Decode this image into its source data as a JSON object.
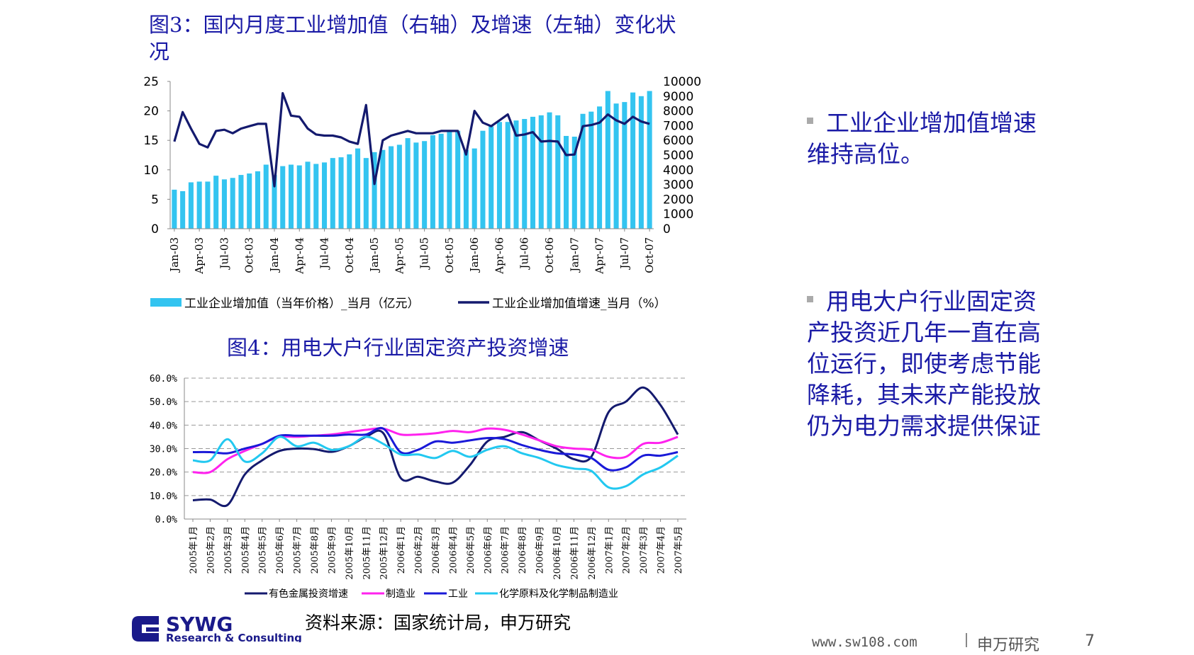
{
  "colors": {
    "title": "#1a1aa6",
    "bar": "#33c4f0",
    "line_dark": "#141a6e",
    "magenta": "#ff22ee",
    "blue": "#1a1ad8",
    "cyan": "#22c8f0"
  },
  "chart_data": [
    {
      "type": "bar+line",
      "title": "图3：国内月度工业增加值（右轴）及增速（左轴）变化状况",
      "x": [
        "Jan-03",
        "Feb-03",
        "Mar-03",
        "Apr-03",
        "May-03",
        "Jun-03",
        "Jul-03",
        "Aug-03",
        "Sep-03",
        "Oct-03",
        "Nov-03",
        "Dec-03",
        "Jan-04",
        "Feb-04",
        "Mar-04",
        "Apr-04",
        "May-04",
        "Jun-04",
        "Jul-04",
        "Aug-04",
        "Sep-04",
        "Oct-04",
        "Nov-04",
        "Dec-04",
        "Jan-05",
        "Feb-05",
        "Mar-05",
        "Apr-05",
        "May-05",
        "Jun-05",
        "Jul-05",
        "Aug-05",
        "Sep-05",
        "Oct-05",
        "Nov-05",
        "Dec-05",
        "Jan-06",
        "Feb-06",
        "Mar-06",
        "Apr-06",
        "May-06",
        "Jun-06",
        "Jul-06",
        "Aug-06",
        "Sep-06",
        "Oct-06",
        "Nov-06",
        "Dec-06",
        "Jan-07",
        "Feb-07",
        "Mar-07",
        "Apr-07",
        "May-07",
        "Jun-07",
        "Jul-07",
        "Aug-07",
        "Sep-07",
        "Oct-07"
      ],
      "x_tick_labels": [
        "Jan-03",
        "Apr-03",
        "Jul-03",
        "Oct-03",
        "Jan-04",
        "Apr-04",
        "Jul-04",
        "Oct-04",
        "Jan-05",
        "Apr-05",
        "Jul-05",
        "Oct-05",
        "Jan-06",
        "Apr-06",
        "Jul-06",
        "Oct-06",
        "Jan-07",
        "Apr-07",
        "Jul-07",
        "Oct-07"
      ],
      "y_left": {
        "ticks": [
          "0",
          "5",
          "10",
          "15",
          "20",
          "25"
        ],
        "lim": [
          0,
          25
        ]
      },
      "y_right": {
        "ticks": [
          "0",
          "1000",
          "2000",
          "3000",
          "4000",
          "5000",
          "6000",
          "7000",
          "8000",
          "9000",
          "10000"
        ],
        "lim": [
          0,
          10000
        ]
      },
      "series": [
        {
          "name": "工业企业增加值（当年价格）_当月（亿元）",
          "type": "bar",
          "axis": "right",
          "values": [
            2650,
            2550,
            3150,
            3200,
            3200,
            3600,
            3350,
            3450,
            3650,
            3750,
            3900,
            4350,
            3650,
            4250,
            4350,
            4300,
            4550,
            4400,
            4500,
            4800,
            4850,
            5050,
            5450,
            4800,
            5200,
            5350,
            5600,
            5700,
            6150,
            5850,
            5950,
            6350,
            6450,
            6650,
            6650,
            5350,
            5450,
            6650,
            6950,
            7250,
            7250,
            7350,
            7450,
            7600,
            7700,
            7900,
            7700,
            6300,
            6250,
            7800,
            7950,
            8300,
            9350,
            8500,
            8600,
            9250,
            9000,
            9350
          ]
        },
        {
          "name": "工业企业增加值增速_当月（%）",
          "type": "line",
          "axis": "left",
          "values": [
            14.8,
            19.8,
            17.0,
            14.4,
            13.8,
            16.6,
            16.8,
            16.2,
            17.0,
            17.4,
            17.8,
            17.8,
            7.2,
            23.0,
            19.2,
            19.0,
            17.0,
            16.0,
            15.8,
            15.8,
            15.5,
            14.8,
            14.4,
            21.0,
            7.6,
            15.0,
            15.8,
            16.2,
            16.6,
            16.2,
            16.2,
            16.2,
            16.6,
            16.6,
            16.6,
            12.6,
            20.0,
            18.0,
            17.4,
            18.4,
            19.4,
            15.8,
            16.0,
            16.4,
            14.8,
            14.9,
            14.8,
            12.5,
            12.6,
            17.4,
            17.6,
            18.0,
            19.4,
            18.4,
            17.8,
            19.0,
            18.2,
            17.8
          ]
        }
      ]
    },
    {
      "type": "line",
      "title": "图4：用电大户行业固定资产投资增速",
      "categories": [
        "2005年1月",
        "2005年2月",
        "2005年3月",
        "2005年4月",
        "2005年5月",
        "2005年6月",
        "2005年7月",
        "2005年8月",
        "2005年9月",
        "2005年10月",
        "2005年11月",
        "2005年12月",
        "2006年1月",
        "2006年2月",
        "2006年3月",
        "2006年4月",
        "2006年5月",
        "2006年6月",
        "2006年7月",
        "2006年8月",
        "2006年9月",
        "2006年10月",
        "2006年11月",
        "2006年12月",
        "2007年1月",
        "2007年2月",
        "2007年3月",
        "2007年4月",
        "2007年5月"
      ],
      "y_ticks": [
        "0.0%",
        "10.0%",
        "20.0%",
        "30.0%",
        "40.0%",
        "50.0%",
        "60.0%"
      ],
      "ylim": [
        0,
        60
      ],
      "grid": true,
      "legend": "bottom",
      "series": [
        {
          "name": "有色金属投资增速",
          "color": "#141a6e",
          "values": [
            8.0,
            8.3,
            6.0,
            19.0,
            25.0,
            29.0,
            30.0,
            29.8,
            28.6,
            31.0,
            35.0,
            36.5,
            17.5,
            18.0,
            16.0,
            15.5,
            23.0,
            33.0,
            35.0,
            37.0,
            33.5,
            30.0,
            25.5,
            26.5,
            45.5,
            50.0,
            56.0,
            48.5,
            36.0
          ]
        },
        {
          "name": "制造业",
          "color": "#ff22ee",
          "values": [
            20.0,
            20.0,
            25.5,
            29.0,
            32.0,
            35.0,
            35.0,
            35.5,
            36.0,
            37.0,
            38.0,
            38.5,
            36.0,
            36.0,
            36.5,
            37.5,
            37.0,
            38.5,
            38.0,
            36.0,
            33.5,
            31.0,
            30.0,
            29.5,
            26.5,
            26.5,
            32.0,
            32.5,
            35.0
          ]
        },
        {
          "name": "工业",
          "color": "#1a1ad8",
          "values": [
            28.5,
            28.5,
            28.0,
            30.0,
            32.0,
            35.5,
            35.5,
            35.5,
            35.5,
            36.0,
            36.0,
            38.5,
            28.5,
            29.5,
            33.0,
            32.5,
            33.5,
            34.5,
            34.0,
            31.5,
            29.5,
            28.0,
            27.5,
            26.0,
            21.0,
            22.0,
            27.0,
            27.0,
            28.5
          ]
        },
        {
          "name": "化学原料及化学制品制造业",
          "color": "#22c8f0",
          "values": [
            25.0,
            25.0,
            34.0,
            24.5,
            28.0,
            35.0,
            31.0,
            32.5,
            29.5,
            31.0,
            35.0,
            32.0,
            27.5,
            27.5,
            26.0,
            29.0,
            26.5,
            29.5,
            31.0,
            28.0,
            26.0,
            23.0,
            21.5,
            20.5,
            13.5,
            14.0,
            19.0,
            22.0,
            27.0
          ]
        }
      ]
    }
  ],
  "bullets": [
    "工业企业增加值增速维持高位。",
    "用电大户行业固定资产投资近几年一直在高位运行，即使考虑节能降耗，其未来产能投放仍为电力需求提供保证"
  ],
  "source": "资料来源：国家统计局，申万研究",
  "logo": {
    "name": "SYWG",
    "subtitle": "Research & Consulting"
  },
  "footer": {
    "url": "www.sw108.com",
    "brand": "申万研究",
    "page": "7"
  }
}
